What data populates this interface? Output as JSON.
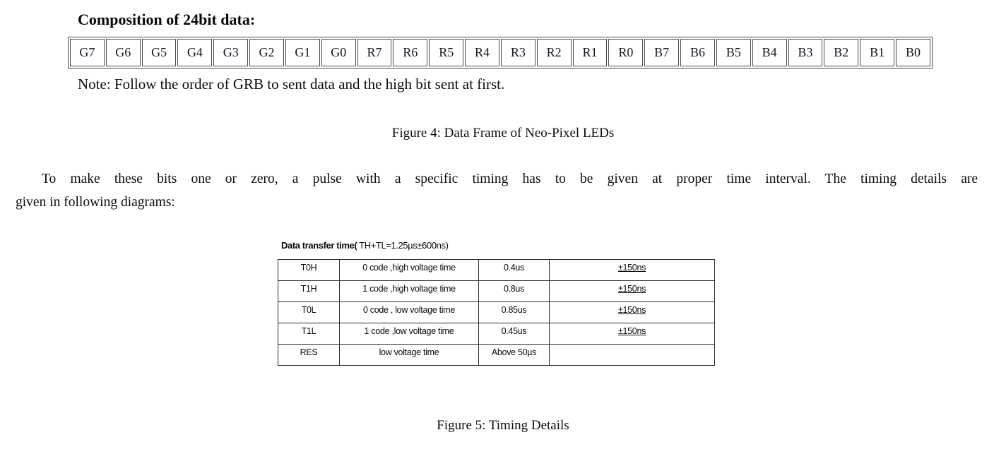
{
  "page": {
    "heading": "Composition of 24bit data:",
    "note": "Note: Follow the order of GRB to sent data and the high bit sent at first.",
    "figure4_caption": "Figure 4: Data Frame of Neo-Pixel LEDs",
    "paragraph_line1": "To make these bits one or zero, a pulse with a specific timing has to be given at proper time interval. The timing details are",
    "paragraph_line2": "given in following diagrams:",
    "figure5_caption": "Figure 5: Timing Details"
  },
  "bit_frame": {
    "bits": [
      "G7",
      "G6",
      "G5",
      "G4",
      "G3",
      "G2",
      "G1",
      "G0",
      "R7",
      "R6",
      "R5",
      "R4",
      "R3",
      "R2",
      "R1",
      "R0",
      "B7",
      "B6",
      "B5",
      "B4",
      "B3",
      "B2",
      "B1",
      "B0"
    ]
  },
  "timing_table": {
    "title_bold": "Data transfer time(",
    "title_rest": " TH+TL=1.25µs±600ns)",
    "rows": [
      {
        "symbol": "T0H",
        "description": "0 code ,high voltage time",
        "value": "0.4us",
        "tolerance": "±150ns"
      },
      {
        "symbol": "T1H",
        "description": "1 code ,high voltage time",
        "value": "0.8us",
        "tolerance": "±150ns"
      },
      {
        "symbol": "T0L",
        "description": "0 code , low voltage time",
        "value": "0.85us",
        "tolerance": "±150ns"
      },
      {
        "symbol": "T1L",
        "description": "1 code ,low voltage time",
        "value": "0.45us",
        "tolerance": "±150ns"
      },
      {
        "symbol": "RES",
        "description": "low voltage time",
        "value": "Above 50µs",
        "tolerance": ""
      }
    ]
  },
  "colors": {
    "background": "#ffffff",
    "text": "#0d0d0d",
    "bit_table_border": "#4a4a4a",
    "timing_table_border": "#2b2b2b"
  }
}
